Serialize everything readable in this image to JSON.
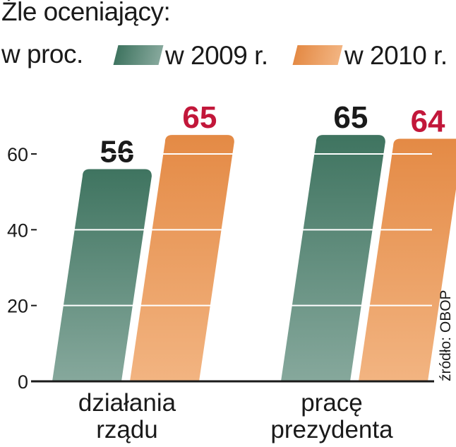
{
  "header": {
    "title": "Źle oceniający:",
    "unit": "w proc."
  },
  "source_note": "źródło: OBOP",
  "colors": {
    "series_2009_top": "#3f7460",
    "series_2009_bottom": "#86a89c",
    "series_2010_top": "#e48a45",
    "series_2010_bottom": "#f2b481",
    "label_2009": "#1a1a1a",
    "label_2010": "#c2173a"
  },
  "chart_data": {
    "type": "bar",
    "categories": [
      "działania rządu",
      "pracę prezydenta"
    ],
    "category_lines": [
      [
        "działania",
        "rządu"
      ],
      [
        "pracę",
        "prezydenta"
      ]
    ],
    "series": [
      {
        "name": "w 2009 r.",
        "values": [
          56,
          65
        ]
      },
      {
        "name": "w 2010 r.",
        "values": [
          65,
          64
        ]
      }
    ],
    "ylim": [
      0,
      70
    ],
    "yticks": [
      0,
      20,
      40,
      60
    ],
    "ytick_labels": [
      "0",
      "20",
      "40",
      "60"
    ],
    "grid": true,
    "legend": "top"
  }
}
